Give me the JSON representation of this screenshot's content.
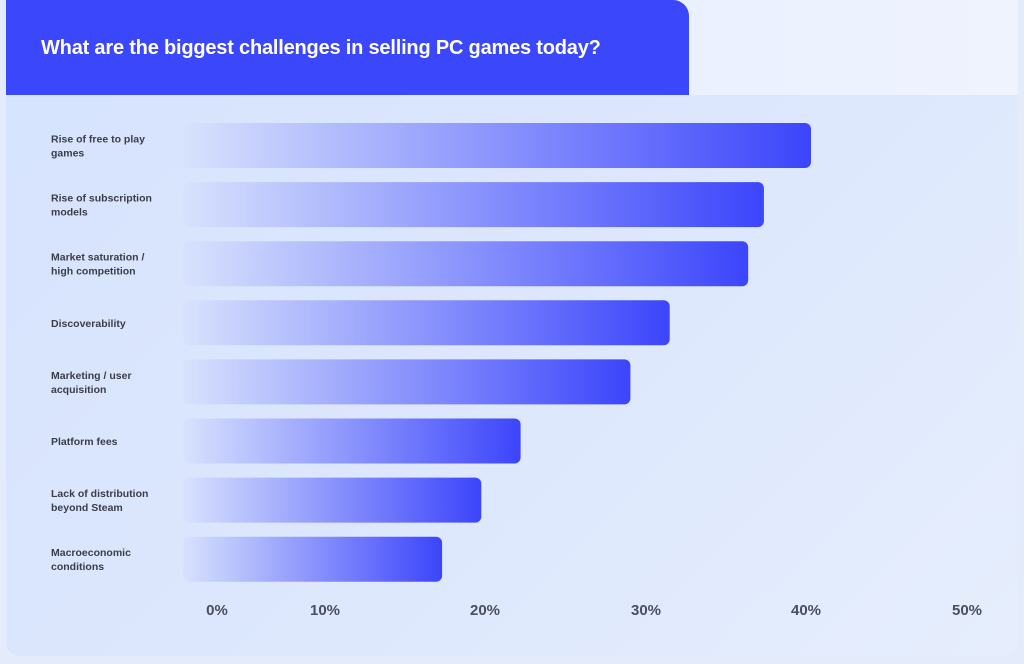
{
  "title": "What are the biggest challenges in selling PC games today?",
  "colors": {
    "title_bg": "#3b47fa",
    "bar_start": "#d8e2fd",
    "bar_end": "#3c45fb",
    "label": "#3a3d4a"
  },
  "chart_data": {
    "type": "bar",
    "orientation": "horizontal",
    "title": "What are the biggest challenges in selling PC games today?",
    "categories": [
      [
        "Rise of free to play",
        "games"
      ],
      [
        "Rise of subscription",
        "models"
      ],
      [
        "Market saturation /",
        "high competition"
      ],
      [
        "Discoverability"
      ],
      [
        "Marketing / user",
        "acquisition"
      ],
      [
        "Platform fees"
      ],
      [
        "Lack of distribution",
        "beyond Steam"
      ],
      [
        "Macroeconomic",
        "conditions"
      ]
    ],
    "values": [
      40,
      37,
      36,
      31,
      28.5,
      21.5,
      19,
      16.5
    ],
    "xticks": [
      "0%",
      "10%",
      "20%",
      "30%",
      "40%",
      "50%"
    ],
    "xlim": [
      0,
      50
    ],
    "grid": false,
    "legend": "none"
  }
}
